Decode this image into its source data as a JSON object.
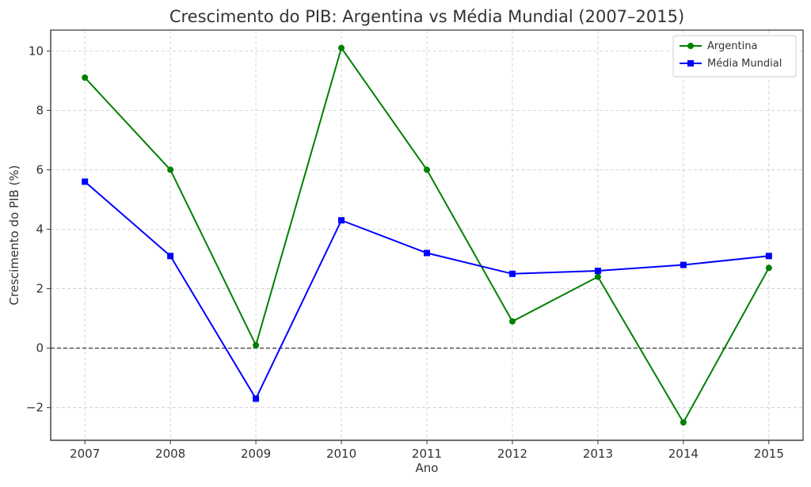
{
  "chart_data": {
    "type": "line",
    "title": "Crescimento do PIB: Argentina vs Média Mundial (2007–2015)",
    "xlabel": "Ano",
    "ylabel": "Crescimento do PIB (%)",
    "x": [
      2007,
      2008,
      2009,
      2010,
      2011,
      2012,
      2013,
      2014,
      2015
    ],
    "x_tick_labels": [
      "2007",
      "2008",
      "2009",
      "2010",
      "2011",
      "2012",
      "2013",
      "2014",
      "2015"
    ],
    "y_ticks": [
      -2,
      0,
      2,
      4,
      6,
      8,
      10
    ],
    "y_tick_labels": [
      "−2",
      "0",
      "2",
      "4",
      "6",
      "8",
      "10"
    ],
    "xlim": [
      2006.6,
      2015.4
    ],
    "ylim": [
      -3.1,
      10.7
    ],
    "grid": true,
    "legend_position": "top-right",
    "reference_line": {
      "y": 0,
      "style": "dashed",
      "color": "#222222"
    },
    "series": [
      {
        "name": "Argentina",
        "marker": "circle",
        "color": "#008000",
        "values": [
          9.1,
          6.0,
          0.1,
          10.1,
          6.0,
          0.9,
          2.4,
          -2.5,
          2.7
        ]
      },
      {
        "name": "Média Mundial",
        "marker": "square",
        "color": "#0000ff",
        "values": [
          5.6,
          3.1,
          -1.7,
          4.3,
          3.2,
          2.5,
          2.6,
          2.8,
          3.1
        ]
      }
    ]
  }
}
